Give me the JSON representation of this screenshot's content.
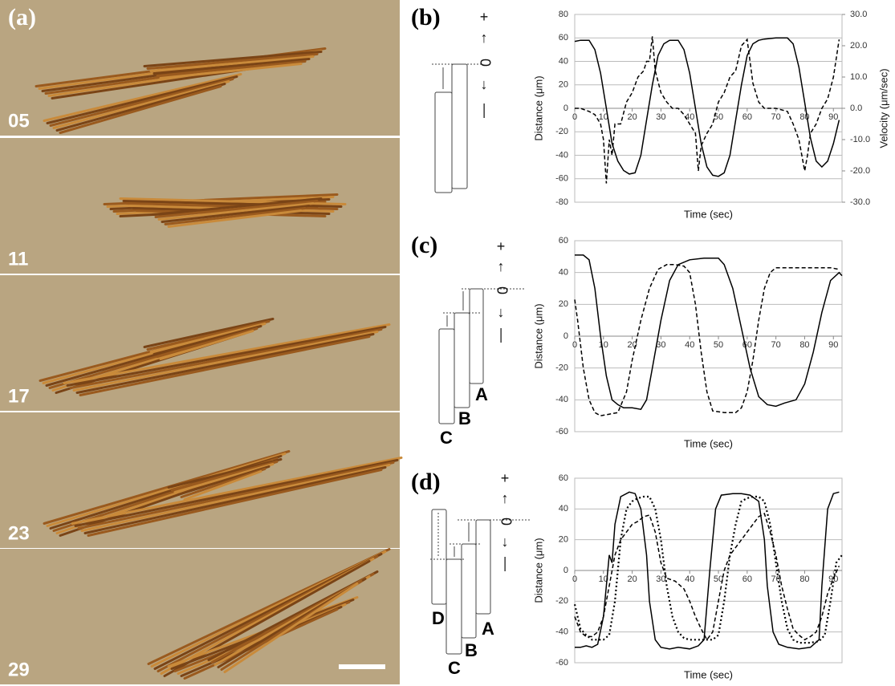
{
  "panel_a": {
    "label": "(a)",
    "frames": [
      "05",
      "11",
      "17",
      "23",
      "29"
    ]
  },
  "diagrams": [
    {
      "label": "(b)",
      "signs": [
        "+",
        "↑",
        "0",
        "↓",
        "—"
      ]
    },
    {
      "label": "(c)",
      "signs": [
        "+",
        "↑",
        "0",
        "↓",
        "—"
      ],
      "cells": [
        "A",
        "B",
        "C"
      ]
    },
    {
      "label": "(d)",
      "signs": [
        "+",
        "↑",
        "0",
        "↓",
        "—"
      ],
      "cells": [
        "A",
        "B",
        "C",
        "D"
      ]
    }
  ],
  "chart_data": [
    {
      "type": "line",
      "xlabel": "Time (sec)",
      "ylabel": "Distance (μm)",
      "y2label": "Velocity (μm/sec)",
      "xlim": [
        0,
        93
      ],
      "xticks": [
        0,
        10,
        20,
        30,
        40,
        50,
        60,
        70,
        80,
        90
      ],
      "ylim": [
        -80,
        80
      ],
      "yticks": [
        -80,
        -60,
        -40,
        -20,
        0,
        20,
        40,
        60,
        80
      ],
      "y2lim": [
        -30,
        30
      ],
      "y2ticks": [
        {
          "value": -30,
          "label": "-30.0"
        },
        {
          "value": -20,
          "label": "-20.0"
        },
        {
          "value": -10,
          "label": "-10.0"
        },
        {
          "value": 0,
          "label": "0.0"
        },
        {
          "value": 10,
          "label": "10.0"
        },
        {
          "value": 20,
          "label": "20.0"
        },
        {
          "value": 30,
          "label": "30.0"
        }
      ],
      "grid": true,
      "series": [
        {
          "color": "#000000",
          "style": "solid",
          "x": [
            0,
            2,
            5,
            7,
            9,
            11,
            13,
            15,
            17,
            19,
            21,
            23,
            25,
            27,
            29,
            31,
            33,
            36,
            38,
            40,
            42,
            44,
            46,
            48,
            50,
            52,
            54,
            56,
            58,
            60,
            62,
            64,
            66,
            70,
            74,
            76,
            78,
            80,
            82,
            84,
            86,
            88,
            90,
            92
          ],
          "values": [
            57,
            58,
            58,
            50,
            30,
            0,
            -30,
            -45,
            -53,
            -56,
            -55,
            -40,
            -10,
            20,
            45,
            55,
            58,
            58,
            50,
            30,
            0,
            -30,
            -50,
            -57,
            -58,
            -55,
            -40,
            -10,
            20,
            45,
            55,
            58,
            59,
            60,
            60,
            55,
            35,
            5,
            -25,
            -45,
            -50,
            -45,
            -30,
            -10
          ]
        },
        {
          "color": "#000000",
          "style": "dashed",
          "axis": "y2",
          "x": [
            0,
            2,
            5,
            7,
            9,
            10,
            11,
            12,
            13,
            14,
            16,
            18,
            20,
            22,
            24,
            25,
            26,
            27,
            28,
            30,
            32,
            34,
            36,
            38,
            40,
            42,
            43,
            44,
            46,
            48,
            50,
            52,
            54,
            56,
            58,
            60,
            61,
            62,
            64,
            66,
            70,
            74,
            76,
            78,
            80,
            81,
            82,
            84,
            86,
            88,
            90,
            92
          ],
          "values": [
            0,
            0,
            -1,
            -2,
            -5,
            -10,
            -24,
            -10,
            -15,
            -5,
            -5,
            2,
            5,
            10,
            12,
            15,
            15,
            23,
            12,
            5,
            2,
            0,
            0,
            -2,
            -5,
            -8,
            -20,
            -12,
            -8,
            -5,
            2,
            5,
            10,
            12,
            20,
            22,
            15,
            8,
            2,
            0,
            0,
            -1,
            -5,
            -10,
            -20,
            -15,
            -8,
            -5,
            0,
            3,
            10,
            22
          ]
        }
      ]
    },
    {
      "type": "line",
      "xlabel": "Time (sec)",
      "ylabel": "Distance (μm)",
      "xlim": [
        0,
        93
      ],
      "xticks": [
        0,
        10,
        20,
        30,
        40,
        50,
        60,
        70,
        80,
        90
      ],
      "ylim": [
        -60,
        60
      ],
      "yticks": [
        -60,
        -40,
        -20,
        0,
        20,
        40,
        60
      ],
      "grid": true,
      "series": [
        {
          "color": "#000000",
          "style": "solid",
          "x": [
            0,
            3,
            5,
            7,
            9,
            11,
            13,
            15,
            17,
            20,
            23,
            25,
            27,
            30,
            33,
            36,
            40,
            45,
            50,
            52,
            55,
            58,
            61,
            64,
            67,
            70,
            73,
            77,
            80,
            83,
            86,
            89,
            92,
            93
          ],
          "values": [
            51,
            51,
            48,
            30,
            0,
            -25,
            -40,
            -43,
            -45,
            -45,
            -46,
            -40,
            -20,
            10,
            35,
            45,
            48,
            49,
            49,
            45,
            30,
            5,
            -20,
            -38,
            -43,
            -44,
            -42,
            -40,
            -30,
            -10,
            15,
            35,
            40,
            38
          ]
        },
        {
          "color": "#000000",
          "style": "dashed",
          "x": [
            0,
            1,
            3,
            5,
            7,
            9,
            12,
            15,
            18,
            20,
            23,
            26,
            29,
            32,
            35,
            38,
            40,
            42,
            44,
            46,
            48,
            52,
            56,
            58,
            60,
            62,
            64,
            66,
            68,
            70,
            75,
            79,
            82,
            85,
            89,
            92
          ],
          "values": [
            23,
            10,
            -20,
            -40,
            -48,
            -50,
            -49,
            -48,
            -35,
            -15,
            10,
            30,
            42,
            45,
            45,
            44,
            40,
            20,
            -10,
            -35,
            -47,
            -48,
            -48,
            -45,
            -35,
            -15,
            10,
            30,
            40,
            43,
            43,
            43,
            43,
            43,
            43,
            42
          ]
        }
      ]
    },
    {
      "type": "line",
      "xlabel": "Time (sec)",
      "ylabel": "Distance (μm)",
      "xlim": [
        0,
        93
      ],
      "xticks": [
        0,
        10,
        20,
        30,
        40,
        50,
        60,
        70,
        80,
        90
      ],
      "ylim": [
        -60,
        60
      ],
      "yticks": [
        -60,
        -40,
        -20,
        0,
        20,
        40,
        60
      ],
      "grid": true,
      "series": [
        {
          "color": "#000000",
          "style": "solid",
          "x": [
            0,
            2,
            4,
            6,
            8,
            10,
            12,
            13,
            14,
            16,
            19,
            21,
            23,
            25,
            26,
            28,
            30,
            33,
            36,
            40,
            43,
            45,
            47,
            49,
            51,
            55,
            58,
            61,
            64,
            66,
            67,
            69,
            71,
            74,
            78,
            82,
            85,
            86,
            88,
            90,
            92
          ],
          "values": [
            -50,
            -50,
            -49,
            -50,
            -48,
            -30,
            10,
            5,
            30,
            48,
            51,
            50,
            40,
            10,
            -20,
            -45,
            -50,
            -51,
            -50,
            -51,
            -49,
            -45,
            0,
            40,
            49,
            50,
            50,
            49,
            45,
            20,
            -10,
            -40,
            -48,
            -50,
            -51,
            -50,
            -45,
            -10,
            40,
            50,
            51
          ]
        },
        {
          "color": "#000000",
          "style": "dashed",
          "x": [
            0,
            2,
            4,
            6,
            8,
            10,
            12,
            14,
            16,
            18,
            20,
            22,
            24,
            26,
            28,
            30,
            32,
            35,
            38,
            40,
            42,
            44,
            46,
            48,
            50,
            52,
            54,
            56,
            58,
            60,
            62,
            64,
            66,
            68,
            70,
            72,
            74,
            76,
            78,
            80,
            82,
            84,
            86,
            88,
            90,
            92
          ],
          "values": [
            -30,
            -40,
            -43,
            -43,
            -40,
            -30,
            -10,
            10,
            20,
            25,
            30,
            32,
            35,
            36,
            25,
            5,
            -5,
            -7,
            -12,
            -20,
            -30,
            -38,
            -45,
            -40,
            -20,
            0,
            10,
            15,
            20,
            25,
            30,
            35,
            37,
            25,
            10,
            -10,
            -25,
            -38,
            -42,
            -45,
            -43,
            -40,
            -30,
            -15,
            -5,
            3
          ]
        },
        {
          "color": "#000000",
          "style": "dotted",
          "x": [
            0,
            2,
            4,
            6,
            8,
            10,
            12,
            14,
            16,
            18,
            20,
            22,
            24,
            26,
            28,
            30,
            32,
            34,
            36,
            38,
            40,
            43,
            46,
            48,
            50,
            52,
            54,
            56,
            58,
            60,
            62,
            64,
            66,
            68,
            70,
            72,
            74,
            76,
            78,
            82,
            85,
            87,
            89,
            91,
            93
          ],
          "values": [
            -22,
            -38,
            -42,
            -45,
            -45,
            -45,
            -42,
            -20,
            20,
            40,
            45,
            47,
            48,
            48,
            40,
            20,
            -10,
            -30,
            -40,
            -44,
            -45,
            -45,
            -45,
            -45,
            -42,
            -20,
            10,
            30,
            45,
            47,
            48,
            48,
            45,
            30,
            5,
            -20,
            -38,
            -45,
            -47,
            -47,
            -46,
            -42,
            -20,
            5,
            10
          ]
        }
      ]
    }
  ]
}
